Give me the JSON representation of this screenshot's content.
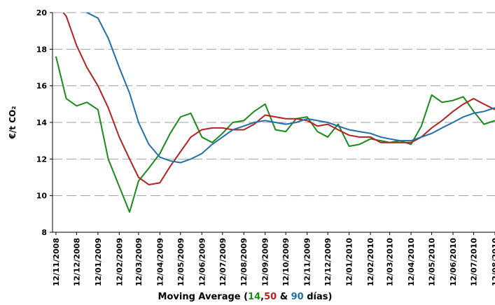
{
  "chart_data": {
    "type": "line",
    "title_parts": [
      "Moving Average (",
      ",",
      " & ",
      " días)"
    ],
    "y_label": "€/t CO₂",
    "x": [
      "12/11/2008",
      "27/11/2008",
      "12/12/2008",
      "27/12/2008",
      "12/01/2009",
      "27/01/2009",
      "12/02/2009",
      "27/02/2009",
      "12/03/2009",
      "27/03/2009",
      "12/04/2009",
      "27/04/2009",
      "12/05/2009",
      "27/05/2009",
      "12/06/2009",
      "27/06/2009",
      "12/07/2009",
      "27/07/2009",
      "12/08/2009",
      "27/08/2009",
      "12/09/2009",
      "27/09/2009",
      "12/10/2009",
      "27/10/2009",
      "12/11/2009",
      "27/11/2009",
      "12/12/2009",
      "27/12/2009",
      "12/01/2010",
      "27/01/2010",
      "12/02/2010",
      "27/02/2010",
      "12/03/2010",
      "27/03/2010",
      "12/04/2010",
      "27/04/2010",
      "12/05/2010",
      "27/05/2010",
      "12/06/2010",
      "27/06/2010",
      "12/07/2010",
      "27/07/2010",
      "12/08/2010"
    ],
    "series": [
      {
        "name": "14",
        "color": "#1a8a1a",
        "values": [
          17.6,
          15.3,
          14.9,
          15.1,
          14.7,
          12.0,
          10.5,
          9.1,
          10.8,
          11.5,
          12.3,
          13.4,
          14.3,
          14.5,
          13.2,
          12.9,
          13.4,
          14.0,
          14.1,
          14.6,
          15.0,
          13.6,
          13.5,
          14.2,
          14.3,
          13.5,
          13.2,
          13.9,
          12.7,
          12.8,
          13.1,
          13.0,
          12.9,
          13.0,
          12.8,
          13.8,
          15.5,
          15.1,
          15.2,
          15.4,
          14.6,
          13.9,
          14.1
        ]
      },
      {
        "name": "50",
        "color": "#b22222",
        "values": [
          20.5,
          19.8,
          18.2,
          17.0,
          16.0,
          14.8,
          13.2,
          12.0,
          11.0,
          10.6,
          10.7,
          11.6,
          12.4,
          13.2,
          13.6,
          13.7,
          13.7,
          13.6,
          13.6,
          13.9,
          14.4,
          14.3,
          14.2,
          14.2,
          14.1,
          13.8,
          13.9,
          13.6,
          13.3,
          13.2,
          13.2,
          12.9,
          12.9,
          12.9,
          12.9,
          13.2,
          13.7,
          14.1,
          14.6,
          15.0,
          15.3,
          15.0,
          14.7
        ]
      },
      {
        "name": "90",
        "color": "#1f6fa8",
        "values": [
          21.5,
          21.0,
          20.5,
          20.0,
          19.7,
          18.6,
          17.0,
          15.6,
          14.0,
          12.8,
          12.1,
          11.9,
          11.8,
          12.0,
          12.3,
          12.8,
          13.2,
          13.6,
          13.8,
          14.0,
          14.1,
          14.0,
          13.9,
          14.0,
          14.2,
          14.1,
          14.0,
          13.8,
          13.6,
          13.5,
          13.4,
          13.2,
          13.1,
          13.0,
          13.0,
          13.2,
          13.4,
          13.7,
          14.0,
          14.3,
          14.5,
          14.6,
          14.8
        ]
      }
    ],
    "xlim": [
      "07/11/2008",
      "12/08/2010"
    ],
    "xticks": [
      "12/11/2008",
      "12/12/2008",
      "12/01/2009",
      "12/02/2009",
      "12/03/2009",
      "12/04/2009",
      "12/05/2009",
      "12/06/2009",
      "12/07/2009",
      "12/08/2009",
      "12/09/2009",
      "12/10/2009",
      "12/11/2009",
      "12/12/2009",
      "12/01/2010",
      "12/02/2010",
      "12/03/2010",
      "12/04/2010",
      "12/05/2010",
      "12/06/2010",
      "12/07/2010",
      "12/08/2010"
    ],
    "ylim": [
      8,
      20
    ],
    "yticks": [
      8,
      10,
      12,
      14,
      16,
      18,
      20
    ],
    "grid": true
  }
}
